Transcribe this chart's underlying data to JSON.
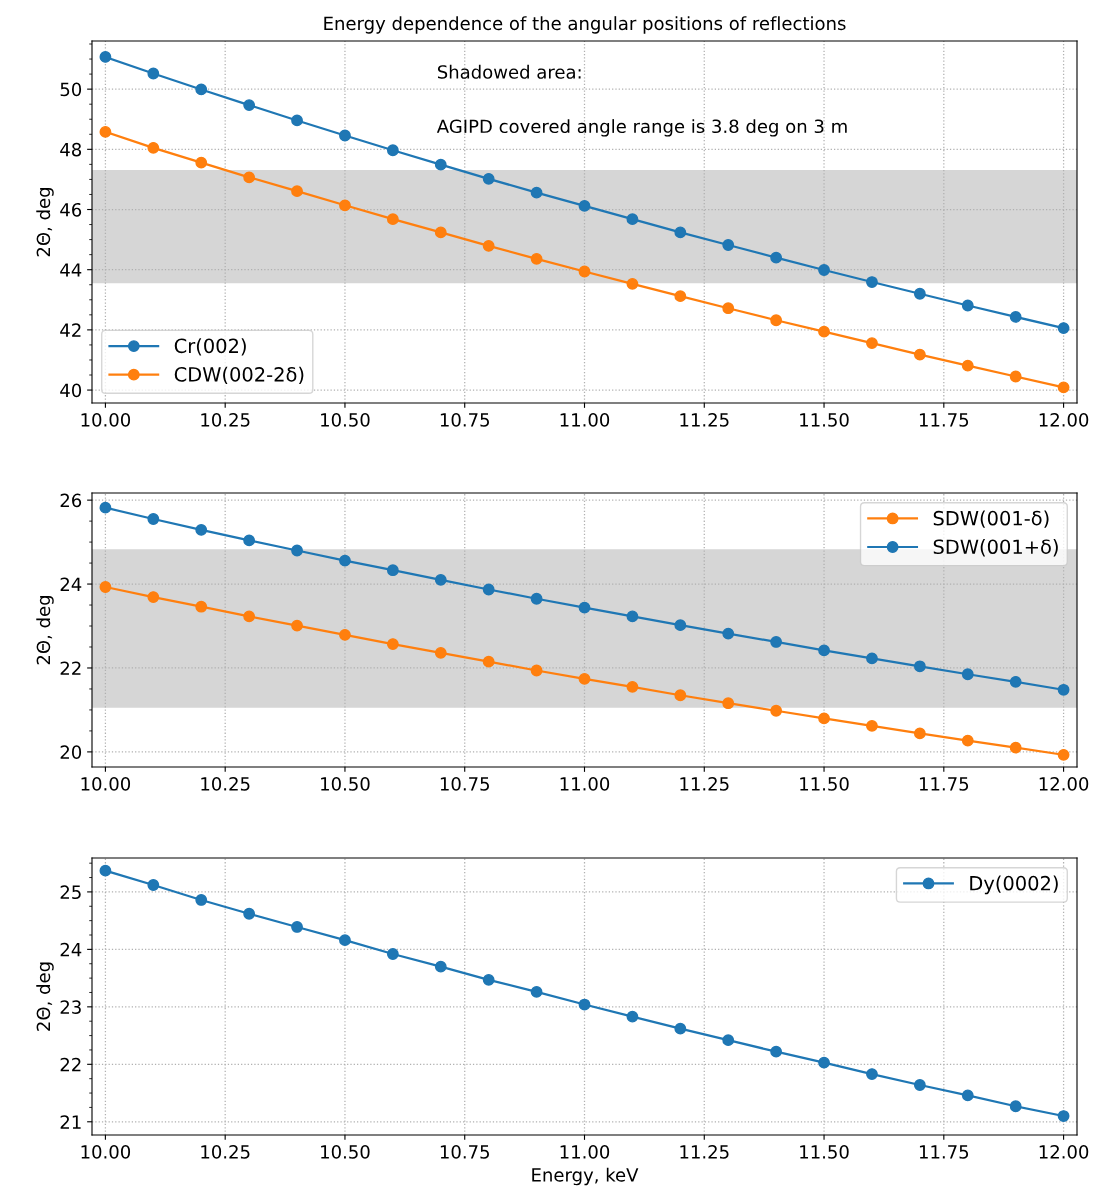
{
  "chart_data": [
    {
      "type": "line",
      "title": "Energy dependence of the angular positions of reflections",
      "ylabel": "2Θ, deg",
      "x": [
        10.0,
        10.1,
        10.2,
        10.3,
        10.4,
        10.5,
        10.6,
        10.7,
        10.8,
        10.9,
        11.0,
        11.1,
        11.2,
        11.3,
        11.4,
        11.5,
        11.6,
        11.7,
        11.8,
        11.9,
        12.0
      ],
      "series": [
        {
          "name": "Cr(002)",
          "color": "#1f77b4",
          "values": [
            51.07,
            50.52,
            49.99,
            49.47,
            48.96,
            48.46,
            47.97,
            47.49,
            47.02,
            46.56,
            46.12,
            45.68,
            45.24,
            44.82,
            44.4,
            43.99,
            43.59,
            43.2,
            42.81,
            42.43,
            42.06
          ]
        },
        {
          "name": "CDW(002-2δ)",
          "color": "#ff7f0e",
          "values": [
            48.58,
            48.05,
            47.56,
            47.07,
            46.61,
            46.14,
            45.68,
            45.24,
            44.79,
            44.36,
            43.94,
            43.53,
            43.12,
            42.72,
            42.32,
            41.94,
            41.56,
            41.18,
            40.81,
            40.45,
            40.09
          ]
        }
      ],
      "bands": [
        {
          "axis": "y",
          "from": 43.55,
          "to": 47.31,
          "color": "#d6d6d6"
        }
      ],
      "annotations": [
        "Shadowed area:",
        "AGIPD covered angle range is 3.8 deg on 3 m"
      ],
      "xlim": [
        9.972,
        12.028
      ],
      "xticks": [
        {
          "value": 10.0,
          "label": "10.00"
        },
        {
          "value": 10.25,
          "label": "10.25"
        },
        {
          "value": 10.5,
          "label": "10.50"
        },
        {
          "value": 10.75,
          "label": "10.75"
        },
        {
          "value": 11.0,
          "label": "11.00"
        },
        {
          "value": 11.25,
          "label": "11.25"
        },
        {
          "value": 11.5,
          "label": "11.50"
        },
        {
          "value": 11.75,
          "label": "11.75"
        },
        {
          "value": 12.0,
          "label": "12.00"
        }
      ],
      "ylim": [
        39.57,
        51.6
      ],
      "yticks": [
        40,
        42,
        44,
        46,
        48,
        50
      ],
      "grid": true,
      "legend": "bottom left",
      "marker": "circle",
      "line_style": "solid"
    },
    {
      "type": "line",
      "ylabel": "2Θ, deg",
      "x": [
        10.0,
        10.1,
        10.2,
        10.3,
        10.4,
        10.5,
        10.6,
        10.7,
        10.8,
        10.9,
        11.0,
        11.1,
        11.2,
        11.3,
        11.4,
        11.5,
        11.6,
        11.7,
        11.8,
        11.9,
        12.0
      ],
      "series": [
        {
          "name": "SDW(001-δ)",
          "color": "#ff7f0e",
          "values": [
            23.93,
            23.69,
            23.46,
            23.23,
            23.01,
            22.79,
            22.57,
            22.36,
            22.15,
            21.94,
            21.74,
            21.55,
            21.35,
            21.16,
            20.98,
            20.8,
            20.62,
            20.44,
            20.27,
            20.1,
            19.93
          ]
        },
        {
          "name": "SDW(001+δ)",
          "color": "#1f77b4",
          "values": [
            25.82,
            25.55,
            25.29,
            25.04,
            24.8,
            24.56,
            24.33,
            24.1,
            23.87,
            23.65,
            23.44,
            23.23,
            23.02,
            22.82,
            22.62,
            22.42,
            22.23,
            22.04,
            21.85,
            21.67,
            21.48
          ]
        }
      ],
      "bands": [
        {
          "axis": "y",
          "from": 21.05,
          "to": 24.83,
          "color": "#d6d6d6"
        }
      ],
      "xlim": [
        9.972,
        12.028
      ],
      "xticks": [
        {
          "value": 10.0,
          "label": "10.00"
        },
        {
          "value": 10.25,
          "label": "10.25"
        },
        {
          "value": 10.5,
          "label": "10.50"
        },
        {
          "value": 10.75,
          "label": "10.75"
        },
        {
          "value": 11.0,
          "label": "11.00"
        },
        {
          "value": 11.25,
          "label": "11.25"
        },
        {
          "value": 11.5,
          "label": "11.50"
        },
        {
          "value": 11.75,
          "label": "11.75"
        },
        {
          "value": 12.0,
          "label": "12.00"
        }
      ],
      "ylim": [
        19.64,
        26.17
      ],
      "yticks": [
        20,
        22,
        24,
        26
      ],
      "grid": true,
      "legend": "top right",
      "marker": "circle",
      "line_style": "solid"
    },
    {
      "type": "line",
      "ylabel": "2Θ, deg",
      "xlabel": "Energy, keV",
      "x": [
        10.0,
        10.1,
        10.2,
        10.3,
        10.4,
        10.5,
        10.6,
        10.7,
        10.8,
        10.9,
        11.0,
        11.1,
        11.2,
        11.3,
        11.4,
        11.5,
        11.6,
        11.7,
        11.8,
        11.9,
        12.0
      ],
      "series": [
        {
          "name": "Dy(0002)",
          "color": "#1f77b4",
          "values": [
            25.37,
            25.12,
            24.86,
            24.62,
            24.39,
            24.16,
            23.92,
            23.7,
            23.47,
            23.26,
            23.04,
            22.83,
            22.62,
            22.42,
            22.22,
            22.03,
            21.83,
            21.64,
            21.46,
            21.27,
            21.1
          ]
        }
      ],
      "xlim": [
        9.972,
        12.028
      ],
      "xticks": [
        {
          "value": 10.0,
          "label": "10.00"
        },
        {
          "value": 10.25,
          "label": "10.25"
        },
        {
          "value": 10.5,
          "label": "10.50"
        },
        {
          "value": 10.75,
          "label": "10.75"
        },
        {
          "value": 11.0,
          "label": "11.00"
        },
        {
          "value": 11.25,
          "label": "11.25"
        },
        {
          "value": 11.5,
          "label": "11.50"
        },
        {
          "value": 11.75,
          "label": "11.75"
        },
        {
          "value": 12.0,
          "label": "12.00"
        }
      ],
      "ylim": [
        20.77,
        25.59
      ],
      "yticks": [
        21,
        22,
        23,
        24,
        25
      ],
      "grid": true,
      "legend": "top right",
      "marker": "circle",
      "line_style": "solid"
    }
  ]
}
